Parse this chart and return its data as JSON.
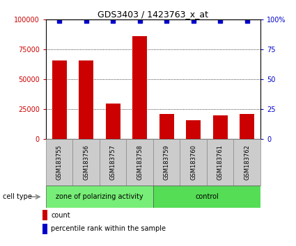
{
  "title": "GDS3403 / 1423763_x_at",
  "samples": [
    "GSM183755",
    "GSM183756",
    "GSM183757",
    "GSM183758",
    "GSM183759",
    "GSM183760",
    "GSM183761",
    "GSM183762"
  ],
  "counts": [
    66000,
    66000,
    30000,
    86000,
    21000,
    16000,
    20000,
    21000
  ],
  "group1_label": "zone of polarizing activity",
  "group2_label": "control",
  "group1_count": 4,
  "group2_count": 4,
  "ylim": [
    0,
    100000
  ],
  "yticks_left": [
    0,
    25000,
    50000,
    75000,
    100000
  ],
  "ytick_labels_left": [
    "0",
    "25000",
    "50000",
    "75000",
    "100000"
  ],
  "yticks_right": [
    0,
    25,
    50,
    75,
    100
  ],
  "ytick_labels_right": [
    "0",
    "25",
    "50",
    "75",
    "100%"
  ],
  "bar_color": "#cc0000",
  "dot_color": "#0000cc",
  "group1_color": "#77ee77",
  "group2_color": "#55dd55",
  "tick_label_color_left": "#cc0000",
  "tick_label_color_right": "#0000cc",
  "cell_type_label": "cell type",
  "legend_count_label": "count",
  "legend_pct_label": "percentile rank within the sample",
  "bar_width": 0.55,
  "sample_box_color": "#cccccc",
  "background_color": "#ffffff",
  "dot_yval": 99000,
  "dot_marker": "s",
  "dot_size": 4
}
